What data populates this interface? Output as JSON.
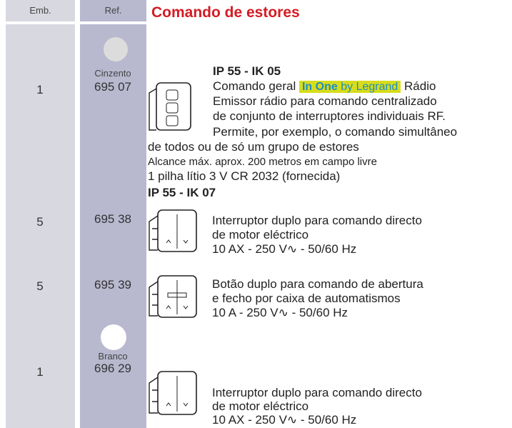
{
  "header": {
    "emb": "Emb.",
    "ref": "Ref.",
    "title": "Comando de estores"
  },
  "items": [
    {
      "emb": "1",
      "ref": "695 07",
      "color": "Cinzento",
      "heading": "IP 55 - IK 05",
      "intro": "Comando geral",
      "brand": "In One",
      "brand_by": "by Legrand",
      "after": "Rádio",
      "lines": [
        "Emissor rádio para comando centralizado",
        "de conjunto de interruptores individuais RF.",
        "Permite, por exemplo, o comando simultâneo"
      ],
      "extra": [
        "de todos ou de só um grupo de estores",
        "Alcance máx. aprox. 200 metros em campo livre",
        "1 pilha lítio 3 V CR 2032 (fornecida)"
      ]
    },
    {
      "emb": "5",
      "ref": "695 38",
      "heading": "IP 55 - IK 07",
      "lines": [
        "Interruptor duplo para comando directo",
        "de motor eléctrico",
        "10 AX - 250 V∿ - 50/60 Hz"
      ]
    },
    {
      "emb": "5",
      "ref": "695 39",
      "lines": [
        "Botão duplo para comando de abertura",
        "e fecho por caixa de automatismos",
        "10 A - 250 V∿ - 50/60 Hz"
      ]
    },
    {
      "emb": "1",
      "ref": "696 29",
      "color": "Branco",
      "lines": [
        "Interruptor duplo para comando directo",
        "de motor eléctrico",
        "10 AX - 250 V∿ - 50/60 Hz"
      ]
    }
  ]
}
